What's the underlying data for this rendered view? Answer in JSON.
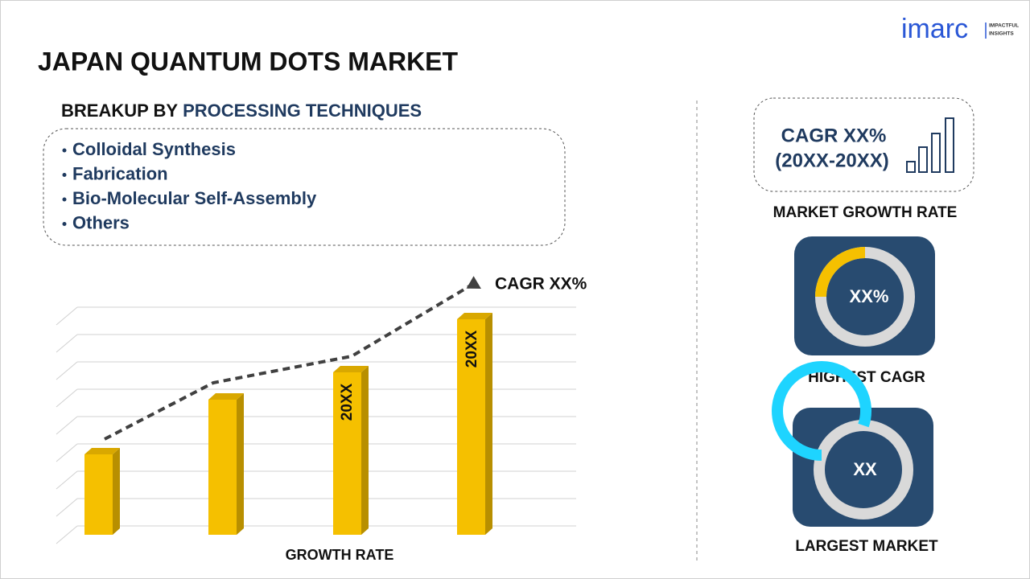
{
  "header": {
    "title": "JAPAN QUANTUM DOTS MARKET",
    "logo": "imarc",
    "logo_tagline": [
      "IMPACTFUL",
      "INSIGHTS"
    ]
  },
  "breakup": {
    "label": "BREAKUP BY",
    "segment": "PROCESSING TECHNIQUES",
    "items": [
      "Colloidal Synthesis",
      "Fabrication",
      "Bio-Molecular Self-Assembly",
      "Others"
    ]
  },
  "growth_chart": {
    "bar_labels": [
      "20XX",
      "20XX"
    ],
    "trend_label": "CAGR XX%",
    "axis_label": "GROWTH RATE"
  },
  "cards": {
    "cagr": {
      "line1": "CAGR XX%",
      "line2": "(20XX-20XX)",
      "caption": "MARKET GROWTH RATE"
    },
    "highest": {
      "value": "XX%",
      "caption": "HIGHEST CAGR"
    },
    "largest": {
      "value": "XX",
      "caption": "LARGEST MARKET"
    }
  }
}
